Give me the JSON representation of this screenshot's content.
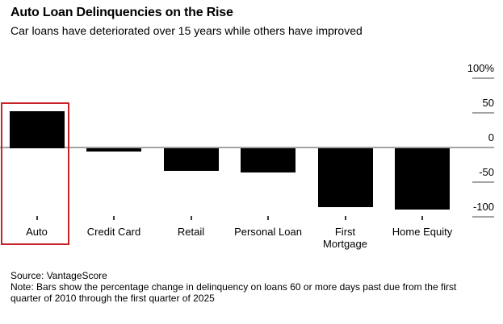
{
  "header": {
    "title": "Auto Loan Delinquencies on the Rise",
    "subtitle": "Car loans have deteriorated over 15 years while others have improved"
  },
  "footer": {
    "source": "Source: VantageScore",
    "note": "Note: Bars show the percentage change in delinquency on loans 60 or more days past due from the first quarter of 2010 through the first quarter of 2025"
  },
  "chart_data": {
    "type": "bar",
    "categories": [
      "Auto",
      "Credit Card",
      "Retail",
      "Personal Loan",
      "First\nMortgage",
      "Home Equity"
    ],
    "values": [
      52,
      -5,
      -32,
      -35,
      -85,
      -88
    ],
    "unit": "percent change",
    "title": "Auto Loan Delinquencies on the Rise",
    "xlabel": "",
    "ylabel": "",
    "ylim": [
      -115,
      115
    ],
    "y_ticks": [
      100,
      50,
      0,
      -50,
      -100
    ],
    "y_tick_labels": [
      "100%",
      "50",
      "0",
      "-50",
      "-100"
    ],
    "grid": "right-side tick dashes only, gray zero line across plot",
    "legend": "none",
    "bar_color": "#000000",
    "axis_color": "#a3a3a3",
    "highlight": {
      "category": "Auto",
      "style": "red outline box",
      "color": "#c92128"
    }
  }
}
